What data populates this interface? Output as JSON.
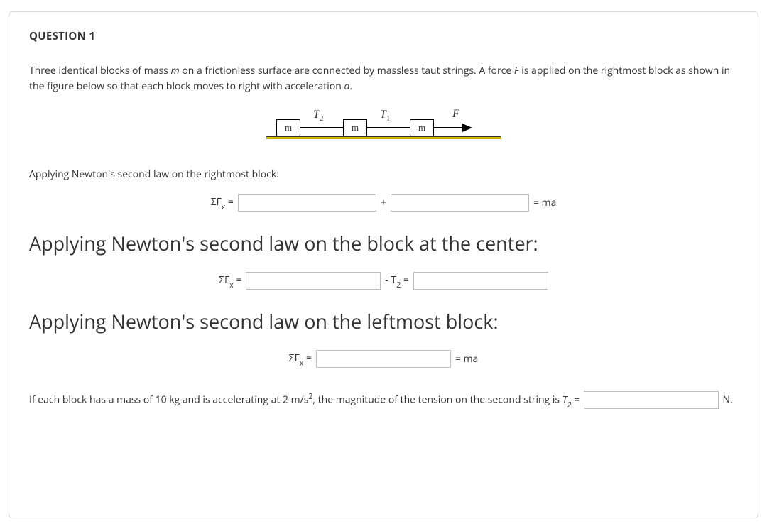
{
  "question": {
    "title": "QUESTION 1",
    "prompt_a": "Three identical blocks of mass ",
    "prompt_m": "m",
    "prompt_b": " on a frictionless surface are connected by massless taut strings. A force ",
    "prompt_F": "F",
    "prompt_c": " is applied on the rightmost block as shown in the figure below so that each block moves to right with acceleration ",
    "prompt_a_sym": "a",
    "prompt_d": "."
  },
  "diagram": {
    "block_label": "m",
    "T2": "T",
    "T2_sub": "2",
    "T1": "T",
    "T1_sub": "1",
    "F": "F",
    "colors": {
      "surface_top": "#e2c200",
      "surface_bottom": "#c9a300",
      "block_border": "#000000",
      "block_fill": "#ffffff",
      "string": "#000000"
    }
  },
  "sections": {
    "right": {
      "heading": "Applying Newton's second law on the rightmost block:",
      "lhs_a": "ΣF",
      "lhs_sub": "x",
      "lhs_b": " =",
      "plus": "+",
      "rhs": "= ma"
    },
    "center": {
      "heading": "Applying Newton's second law on the block at the center:",
      "lhs_a": "ΣF",
      "lhs_sub": "x",
      "lhs_b": " =",
      "mid_a": "- T",
      "mid_sub": "2",
      "mid_b": " ="
    },
    "left": {
      "heading": "Applying Newton's second law on the leftmost block:",
      "lhs_a": "ΣF",
      "lhs_sub": "x",
      "lhs_b": " =",
      "rhs": "= ma"
    }
  },
  "final": {
    "a": "If each block has a mass of 10 kg and is accelerating at 2 m/s",
    "sup": "2",
    "b": ", the magnitude of the tension on the second string is ",
    "T2": "T",
    "T2_sub": "2",
    "c": " = ",
    "unit": " N."
  },
  "colors": {
    "text": "#333333",
    "border": "#d8d8d8",
    "input_border": "#bdbdbd",
    "background": "#ffffff"
  }
}
